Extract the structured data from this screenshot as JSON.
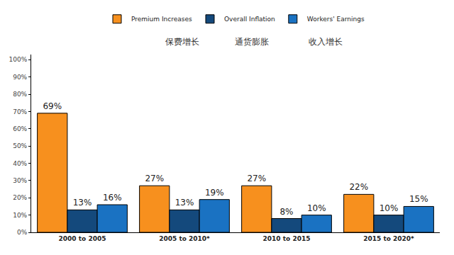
{
  "chart_data": {
    "type": "bar",
    "categories": [
      "2000 to 2005",
      "2005 to 2010*",
      "2010 to 2015",
      "2015 to 2020*"
    ],
    "series": [
      {
        "name": "Premium Increases",
        "color": "#f7901e",
        "values": [
          69,
          27,
          27,
          22
        ],
        "value_labels": [
          "69%",
          "27%",
          "27%",
          "22%"
        ]
      },
      {
        "name": "Overall Inflation",
        "color": "#14497c",
        "values": [
          13,
          13,
          8,
          10
        ],
        "value_labels": [
          "13%",
          "13%",
          "8%",
          "10%"
        ]
      },
      {
        "name": "Workers' Earnings",
        "color": "#1a72c2",
        "values": [
          16,
          19,
          10,
          15
        ],
        "value_labels": [
          "16%",
          "19%",
          "10%",
          "15%"
        ]
      }
    ],
    "ylim": [
      0,
      103
    ],
    "yticks": [
      {
        "value": 0,
        "label": "0%"
      },
      {
        "value": 10,
        "label": "10%"
      },
      {
        "value": 20,
        "label": "20%"
      },
      {
        "value": 30,
        "label": "30%"
      },
      {
        "value": 40,
        "label": "40%"
      },
      {
        "value": 50,
        "label": "50%"
      },
      {
        "value": 60,
        "label": "60%"
      },
      {
        "value": 70,
        "label": "70%"
      },
      {
        "value": 80,
        "label": "80%"
      },
      {
        "value": 90,
        "label": "90%"
      },
      {
        "value": 100,
        "label": "100%"
      }
    ],
    "grid": false,
    "legend": "top",
    "data_labels": true,
    "annotations": [
      "保费增长",
      "通货膨胀",
      "收入增长"
    ]
  }
}
